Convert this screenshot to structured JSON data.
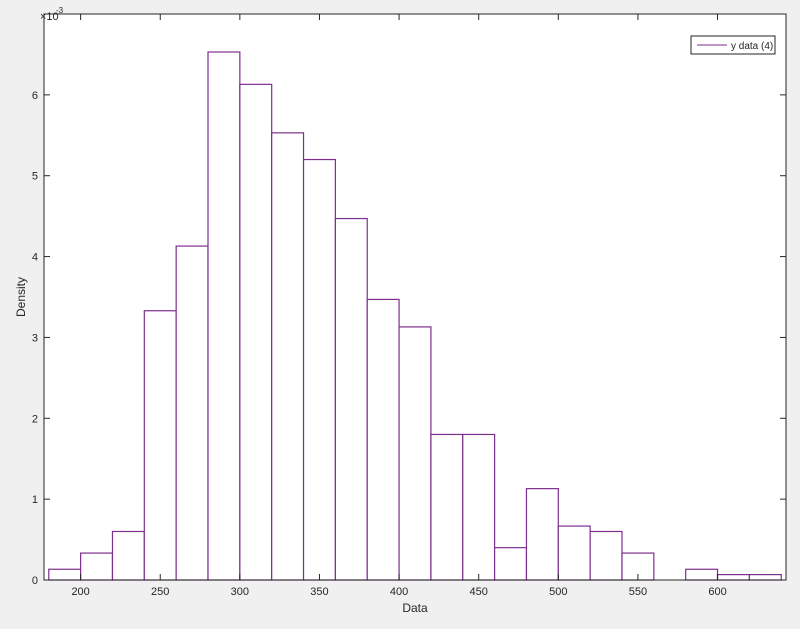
{
  "chart_data": {
    "type": "bar",
    "bin_edges": [
      180,
      200,
      220,
      240,
      260,
      280,
      300,
      320,
      340,
      360,
      380,
      400,
      420,
      440,
      460,
      480,
      500,
      520,
      540,
      560,
      580,
      600,
      620,
      640
    ],
    "values": [
      0.000133,
      0.000333,
      0.0006,
      0.00333,
      0.00413,
      0.00653,
      0.00613,
      0.00553,
      0.0052,
      0.00447,
      0.00347,
      0.00313,
      0.0018,
      0.0018,
      0.0004,
      0.00113,
      0.000667,
      0.0006,
      0.000333,
      0,
      0.000133,
      6.67e-05,
      6.67e-05
    ],
    "xlabel": "Data",
    "ylabel": "Density",
    "xlim": [
      177,
      643
    ],
    "ylim": [
      0,
      0.007
    ],
    "x_ticks": [
      200,
      250,
      300,
      350,
      400,
      450,
      500,
      550,
      600
    ],
    "y_ticks": [
      0,
      1,
      2,
      3,
      4,
      5,
      6
    ],
    "y_exponent_label": "×10",
    "y_exponent_power": "-3",
    "grid": false,
    "legend": {
      "entries": [
        {
          "name": "y data (4)",
          "color": "#7e2f8e"
        }
      ],
      "location": "top-right"
    },
    "bar_edge_color": "#7e2f8e",
    "bar_face_color": "#ffffff"
  }
}
